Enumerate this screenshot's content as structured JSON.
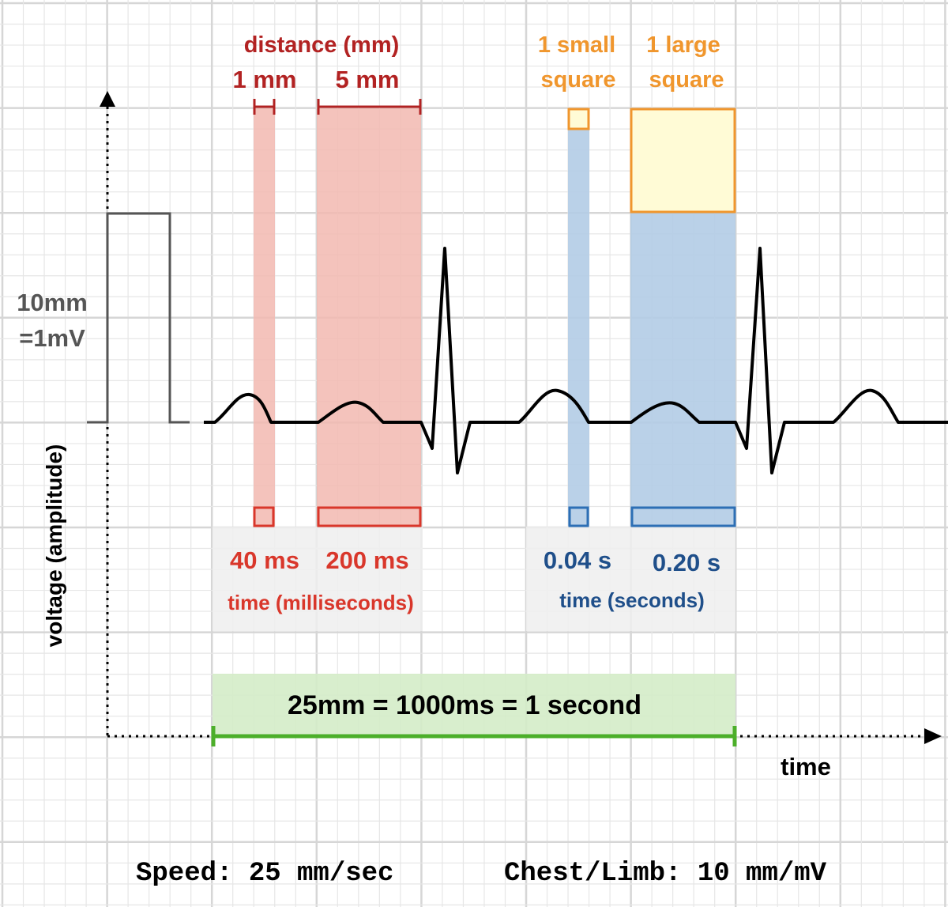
{
  "labels": {
    "distance_title": "distance (mm)",
    "one_mm": "1 mm",
    "five_mm": "5 mm",
    "small_square_1": "1 small",
    "small_square_2": "square",
    "large_square_1": "1 large",
    "large_square_2": "square",
    "calibration_1": "10mm",
    "calibration_2": "=1mV",
    "y_axis": "voltage (amplitude)",
    "ms_40": "40 ms",
    "ms_200": "200 ms",
    "time_ms": "time (milliseconds)",
    "s_004": "0.04 s",
    "s_020": "0.20 s",
    "time_s": "time (seconds)",
    "equivalence": "25mm = 1000ms = 1 second",
    "x_axis": "time",
    "speed": "Speed: 25 mm/sec",
    "gain": "Chest/Limb: 10 mm/mV"
  },
  "colors": {
    "red": "#b22222",
    "red_fill": "#f2b8b0",
    "blue": "#2d6fb5",
    "blue_fill": "#b3cce6",
    "orange": "#f0962d",
    "yellow_fill": "#fffbd6",
    "green": "#4caf2a",
    "green_fill": "#d4ecc8",
    "grid_minor": "#e6e6e6",
    "grid_major": "#d6d6d6"
  }
}
